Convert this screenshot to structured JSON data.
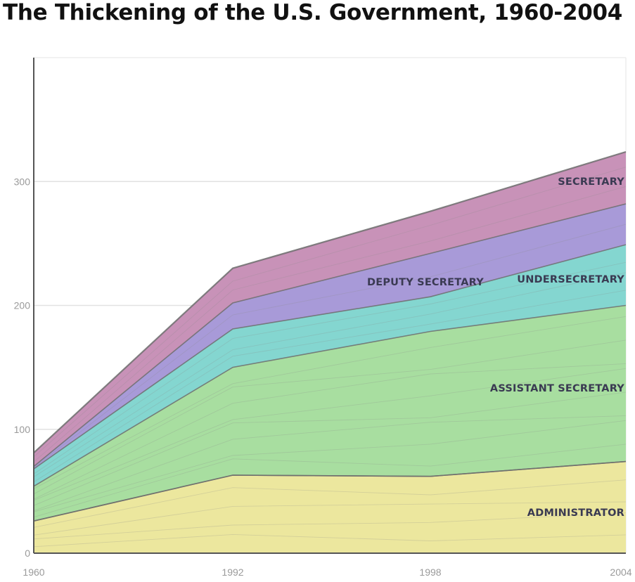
{
  "title": "The Thickening of the U.S. Government, 1960-2004",
  "chart_data": {
    "type": "area",
    "stacked": true,
    "title": "The Thickening of the U.S. Government, 1960-2004",
    "x": [
      1960,
      1992,
      1998,
      2004
    ],
    "x_tick_labels": [
      "1960",
      "1992",
      "1998",
      "2004"
    ],
    "y_ticks": [
      0,
      100,
      200,
      300
    ],
    "ylim": [
      0,
      400
    ],
    "grid": true,
    "series": [
      {
        "name": "ADMINISTRATOR",
        "color": "#ece79e",
        "values": [
          26,
          63,
          62,
          74
        ]
      },
      {
        "name": "",
        "color": "#f3c79c",
        "values": [
          0,
          0,
          0,
          0
        ]
      },
      {
        "name": "ASSISTANT SECRETARY",
        "color": "#a8dea0",
        "values": [
          28,
          87,
          117,
          126
        ]
      },
      {
        "name": "UNDERSECRETARY",
        "color": "#84d6d0",
        "values": [
          14,
          31,
          28,
          49
        ]
      },
      {
        "name": "DEPUTY SECRETARY",
        "color": "#a89ad8",
        "values": [
          2,
          21,
          35,
          33
        ]
      },
      {
        "name": "SECRETARY",
        "color": "#c892b8",
        "values": [
          11,
          28,
          34,
          42
        ]
      }
    ],
    "labels": [
      {
        "text": "SECRETARY",
        "series": "SECRETARY"
      },
      {
        "text": "DEPUTY SECRETARY",
        "series": "DEPUTY SECRETARY"
      },
      {
        "text": "UNDERSECRETARY",
        "series": "UNDERSECRETARY"
      },
      {
        "text": "ASSISTANT SECRETARY",
        "series": "ASSISTANT SECRETARY"
      },
      {
        "text": "ADMINISTRATOR",
        "series": "ADMINISTRATOR"
      }
    ]
  }
}
